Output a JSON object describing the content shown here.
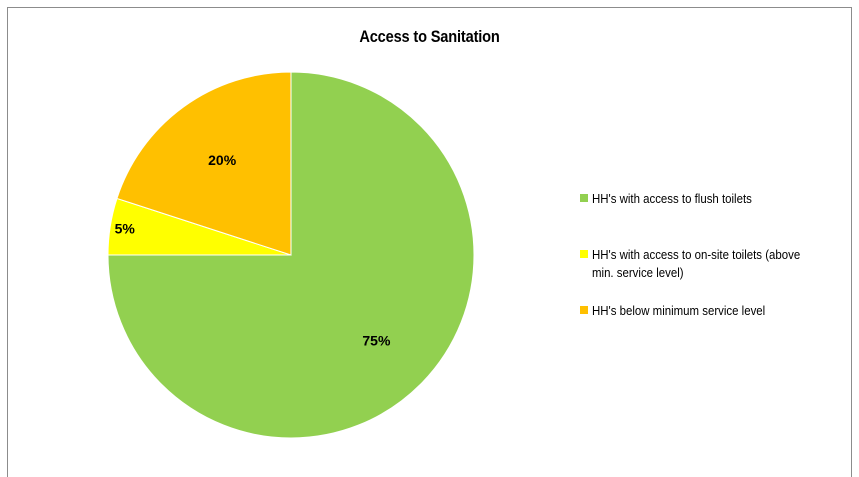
{
  "chart_data": {
    "type": "pie",
    "title": "Access to Sanitation",
    "slices": [
      {
        "label": "HH's with access to flush toilets",
        "value": 75,
        "display": "75%",
        "color": "#92d050"
      },
      {
        "label": "HH's with access to on-site toilets (above min. service level)",
        "value": 5,
        "display": "5%",
        "color": "#ffff00"
      },
      {
        "label": "HH's below minimum service level",
        "value": 20,
        "display": "20%",
        "color": "#ffc000"
      }
    ],
    "legend_position": "right"
  }
}
